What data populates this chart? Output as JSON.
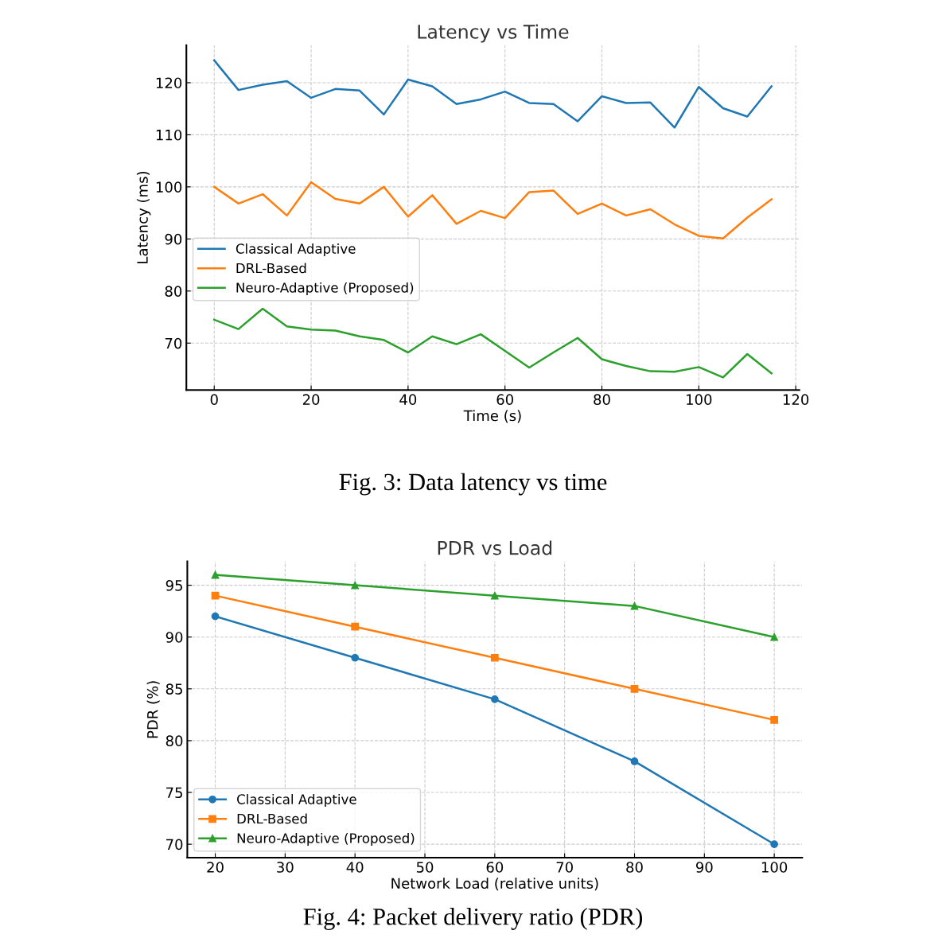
{
  "chart_data": [
    {
      "type": "line",
      "title": "Latency vs Time",
      "xlabel": "Time (s)",
      "ylabel": "Latency (ms)",
      "annotations": [
        "Fig. 3: Data latency vs time"
      ],
      "x": [
        0,
        5,
        10,
        15,
        20,
        25,
        30,
        35,
        40,
        45,
        50,
        55,
        60,
        65,
        70,
        75,
        80,
        85,
        90,
        95,
        100,
        105,
        110,
        115
      ],
      "series": [
        {
          "name": "Classical Adaptive",
          "color": "#1f77b4",
          "values": [
            124.3,
            118.6,
            119.6,
            120.3,
            117.1,
            118.8,
            118.5,
            113.9,
            120.6,
            119.3,
            115.9,
            116.8,
            118.3,
            116.1,
            115.9,
            112.6,
            117.4,
            116.1,
            116.2,
            111.4,
            119.2,
            115.1,
            113.5,
            119.3
          ]
        },
        {
          "name": "DRL-Based",
          "color": "#ff7f0e",
          "values": [
            100,
            96.8,
            98.6,
            94.5,
            100.9,
            97.7,
            96.8,
            100,
            94.3,
            98.4,
            92.9,
            95.4,
            94,
            99,
            99.3,
            94.8,
            96.8,
            94.5,
            95.7,
            92.8,
            90.6,
            90.1,
            94.1,
            97.6
          ]
        },
        {
          "name": "Neuro-Adaptive (Proposed)",
          "color": "#2ca02c",
          "values": [
            74.5,
            72.7,
            76.6,
            73.2,
            72.6,
            72.4,
            71.3,
            70.6,
            68.2,
            71.3,
            69.8,
            71.7,
            68.5,
            65.3,
            68.2,
            71,
            66.9,
            65.6,
            64.6,
            64.5,
            65.4,
            63.4,
            67.9,
            64.2
          ]
        }
      ],
      "xlim": [
        -5.75,
        120.75
      ],
      "ylim": [
        61,
        127.2
      ],
      "xticks": [
        0,
        20,
        40,
        60,
        80,
        100,
        120
      ],
      "yticks": [
        70,
        80,
        90,
        100,
        110,
        120
      ],
      "grid": true,
      "legend": "left",
      "line_style": "solid"
    },
    {
      "type": "line",
      "title": "PDR vs Load",
      "xlabel": "Network Load (relative units)",
      "ylabel": "PDR (%)",
      "annotations": [
        "Fig. 4: Packet delivery ratio (PDR)"
      ],
      "x": [
        20,
        40,
        60,
        80,
        100
      ],
      "series": [
        {
          "name": "Classical Adaptive",
          "color": "#1f77b4",
          "values": [
            92,
            88,
            84,
            78,
            70
          ],
          "marker": "circle"
        },
        {
          "name": "DRL-Based",
          "color": "#ff7f0e",
          "values": [
            94,
            91,
            88,
            85,
            82
          ],
          "marker": "square"
        },
        {
          "name": "Neuro-Adaptive (Proposed)",
          "color": "#2ca02c",
          "values": [
            96,
            95,
            94,
            93,
            90
          ],
          "marker": "triangle"
        }
      ],
      "xlim": [
        16,
        104
      ],
      "ylim": [
        68.7,
        97.3
      ],
      "xticks": [
        20,
        30,
        40,
        50,
        60,
        70,
        80,
        90,
        100
      ],
      "yticks": [
        70,
        75,
        80,
        85,
        90,
        95
      ],
      "grid": true,
      "legend": "bottom left",
      "line_style": "solid"
    }
  ]
}
